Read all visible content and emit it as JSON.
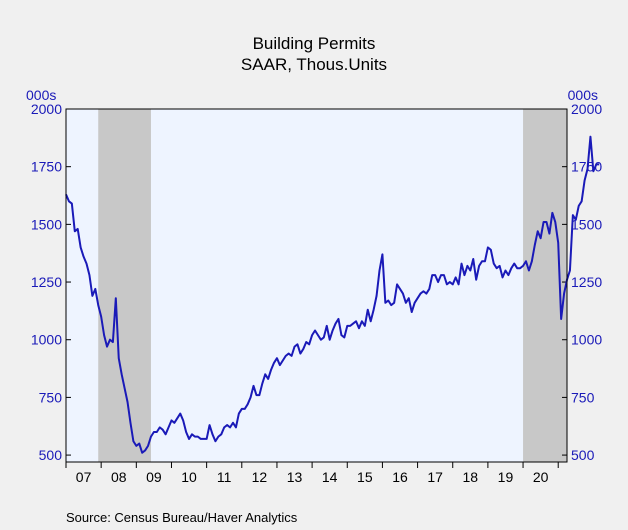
{
  "chart_data": {
    "type": "line",
    "title": "Building Permits",
    "subtitle": "SAAR, Thous.Units",
    "ylabel_left": "000s",
    "ylabel_right": "000s",
    "ylim": [
      470,
      2000
    ],
    "yticks": [
      500,
      750,
      1000,
      1250,
      1500,
      1750,
      2000
    ],
    "xlim": [
      2007.0,
      2021.25
    ],
    "xtick_labels": [
      "07",
      "08",
      "09",
      "10",
      "11",
      "12",
      "13",
      "14",
      "15",
      "16",
      "17",
      "18",
      "19",
      "20"
    ],
    "source": "Source:  Census Bureau/Haver Analytics",
    "recessions": [
      [
        2007.917,
        2009.417
      ],
      [
        2020.0,
        2021.25
      ]
    ],
    "colors": {
      "line": "#1a1ab8",
      "plot_bg": "#eef4ff",
      "recession": "#c8c8c8",
      "page_bg": "#f0f0f0"
    },
    "series": [
      {
        "x_start": 2007.0,
        "step": 0.0833333,
        "values": [
          1630,
          1600,
          1590,
          1470,
          1480,
          1400,
          1360,
          1330,
          1280,
          1190,
          1220,
          1150,
          1100,
          1020,
          970,
          1000,
          990,
          1180,
          920,
          850,
          790,
          730,
          640,
          560,
          540,
          550,
          510,
          520,
          540,
          580,
          600,
          600,
          620,
          610,
          590,
          620,
          650,
          640,
          660,
          680,
          650,
          600,
          570,
          590,
          580,
          580,
          570,
          570,
          570,
          630,
          590,
          560,
          580,
          590,
          620,
          630,
          620,
          640,
          620,
          680,
          700,
          700,
          720,
          750,
          800,
          760,
          760,
          810,
          850,
          830,
          870,
          900,
          920,
          890,
          910,
          930,
          940,
          930,
          970,
          980,
          940,
          960,
          990,
          980,
          1020,
          1040,
          1020,
          1000,
          1010,
          1060,
          1000,
          1040,
          1070,
          1090,
          1020,
          1010,
          1060,
          1060,
          1070,
          1080,
          1050,
          1080,
          1060,
          1130,
          1080,
          1130,
          1190,
          1300,
          1370,
          1160,
          1170,
          1150,
          1160,
          1240,
          1220,
          1200,
          1160,
          1180,
          1120,
          1160,
          1180,
          1200,
          1210,
          1200,
          1220,
          1280,
          1280,
          1250,
          1280,
          1280,
          1240,
          1250,
          1240,
          1270,
          1240,
          1330,
          1280,
          1320,
          1300,
          1350,
          1260,
          1320,
          1340,
          1340,
          1400,
          1390,
          1330,
          1310,
          1320,
          1270,
          1300,
          1280,
          1310,
          1330,
          1310,
          1310,
          1320,
          1340,
          1300,
          1340,
          1410,
          1470,
          1440,
          1510,
          1510,
          1460,
          1550,
          1510,
          1420,
          1090,
          1200,
          1260,
          1300,
          1540,
          1520,
          1580,
          1600,
          1690,
          1740,
          1880,
          1730,
          1760,
          1760
        ]
      }
    ]
  }
}
